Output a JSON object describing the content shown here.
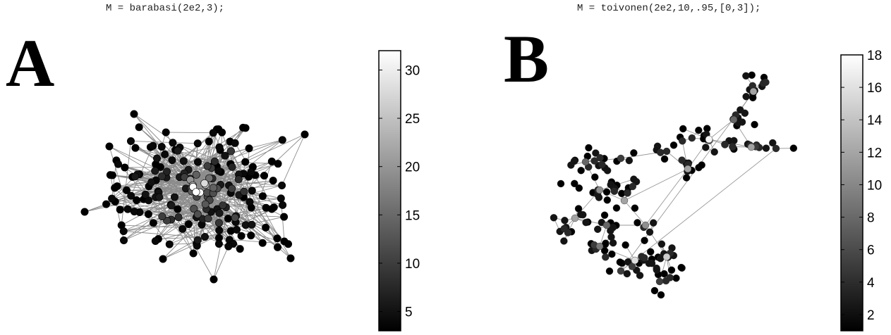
{
  "panels": [
    {
      "label": "A",
      "code": "M = barabasi(2e2,3);",
      "colorbar": {
        "ticks": [
          "5",
          "10",
          "15",
          "20",
          "25",
          "30"
        ],
        "tick_values": [
          5,
          10,
          15,
          20,
          25,
          30
        ],
        "range": [
          3,
          32
        ]
      },
      "node_count": 200
    },
    {
      "label": "B",
      "code": "M = toivonen(2e2,10,.95,[0,3]);",
      "colorbar": {
        "ticks": [
          "2",
          "4",
          "6",
          "8",
          "10",
          "12",
          "14",
          "16",
          "18"
        ],
        "tick_values": [
          2,
          4,
          6,
          8,
          10,
          12,
          14,
          16,
          18
        ],
        "range": [
          1,
          18
        ]
      },
      "node_count": 200
    }
  ]
}
